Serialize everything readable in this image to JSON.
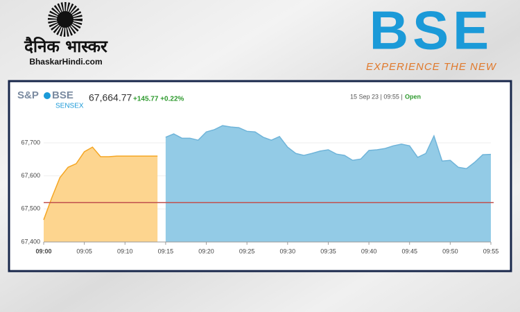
{
  "header": {
    "brand": "दैनिक भास्कर",
    "site": "BhaskarHindi.com",
    "logo": "BSE",
    "tagline": "EXPERIENCE THE NEW"
  },
  "chart_data": {
    "type": "area",
    "index_logo": [
      "S&P",
      "BSE",
      "SENSEX"
    ],
    "last": "67,664.77",
    "change": "+145.77 +0.22%",
    "timestamp": "15 Sep 23 | 09:55 |",
    "status": "Open",
    "xlim": [
      "09:00",
      "09:55"
    ],
    "xticks": [
      "09:00",
      "09:05",
      "09:10",
      "09:15",
      "09:20",
      "09:25",
      "09:30",
      "09:35",
      "09:40",
      "09:45",
      "09:50",
      "09:55"
    ],
    "ylim": [
      67400,
      67760
    ],
    "yticks": [
      {
        "value": 67400,
        "label": "67,400"
      },
      {
        "value": 67500,
        "label": "67,500"
      },
      {
        "value": 67600,
        "label": "67,600"
      },
      {
        "value": 67700,
        "label": "67,700"
      }
    ],
    "grid": true,
    "ref_line": {
      "value": 67519,
      "color": "#c0504d"
    },
    "series": [
      {
        "color": "#f5a623",
        "fill": "#fdd58f",
        "x": [
          "09:00",
          "09:01",
          "09:02",
          "09:03",
          "09:04",
          "09:05",
          "09:06",
          "09:07",
          "09:08",
          "09:09",
          "09:10",
          "09:11",
          "09:12",
          "09:13",
          "09:14"
        ],
        "values": [
          67467,
          67534,
          67595,
          67626,
          67637,
          67673,
          67687,
          67658,
          67658,
          67660,
          67660,
          67660,
          67660,
          67660,
          67660
        ]
      },
      {
        "color": "#6fb4d9",
        "fill": "#93cbe6",
        "x": [
          "09:15",
          "09:16",
          "09:17",
          "09:18",
          "09:19",
          "09:20",
          "09:21",
          "09:22",
          "09:23",
          "09:24",
          "09:25",
          "09:26",
          "09:27",
          "09:28",
          "09:29",
          "09:30",
          "09:31",
          "09:32",
          "09:33",
          "09:34",
          "09:35",
          "09:36",
          "09:37",
          "09:38",
          "09:39",
          "09:40",
          "09:41",
          "09:42",
          "09:43",
          "09:44",
          "09:45",
          "09:46",
          "09:47",
          "09:48",
          "09:49",
          "09:50",
          "09:51",
          "09:52",
          "09:53",
          "09:54",
          "09:55"
        ],
        "values": [
          67717,
          67727,
          67714,
          67714,
          67708,
          67733,
          67740,
          67752,
          67748,
          67746,
          67735,
          67733,
          67717,
          67708,
          67719,
          67687,
          67668,
          67662,
          67668,
          67675,
          67679,
          67666,
          67662,
          67647,
          67651,
          67677,
          67679,
          67683,
          67691,
          67696,
          67691,
          67656,
          67668,
          67721,
          67645,
          67647,
          67626,
          67622,
          67641,
          67664,
          67665
        ]
      }
    ]
  }
}
